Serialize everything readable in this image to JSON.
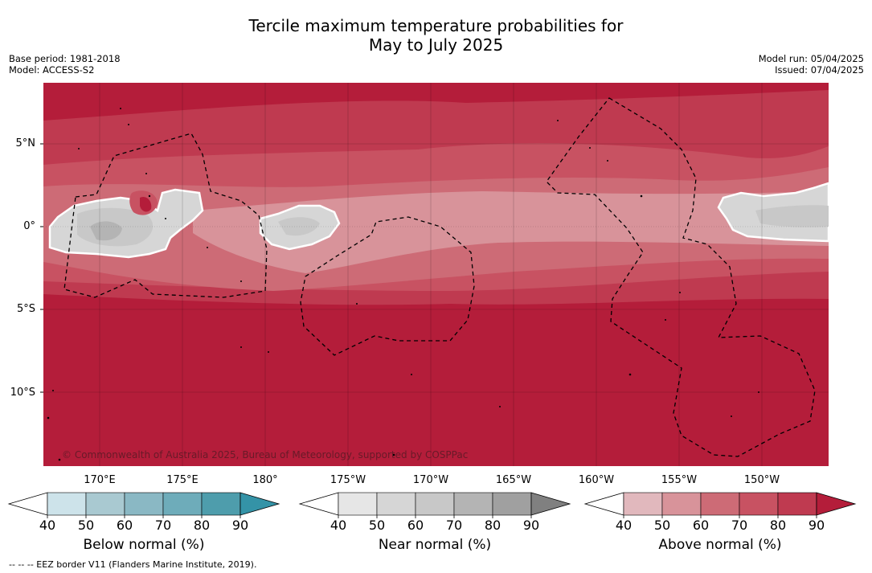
{
  "header": {
    "title_line1": "Tercile maximum temperature probabilities for",
    "title_line2": "May to July 2025",
    "base_period": "Base period: 1981-2018",
    "model": "Model: ACCESS-S2",
    "model_run": "Model run: 05/04/2025",
    "issued": "Issued: 07/04/2025"
  },
  "map": {
    "lat_labels": [
      "5°N",
      "0°",
      "5°S",
      "10°S"
    ],
    "lon_labels": [
      "170°E",
      "175°E",
      "180°",
      "175°W",
      "170°W",
      "165°W",
      "160°W",
      "155°W",
      "150°W"
    ],
    "copyright": "© Commonwealth of Australia 2025, Bureau of Meteorology, supported by COSPPac",
    "colors": {
      "above_90": "#b41d3a",
      "above_80": "#bf3a50",
      "above_70": "#c85262",
      "above_60": "#cd6b76",
      "above_50": "#d8939a",
      "near_50": "#d6d6d6",
      "near_60": "#c8c8c8",
      "near_70": "#b4b4b4",
      "eez_line": "#000000"
    }
  },
  "colorbars": [
    {
      "name": "below",
      "title": "Below normal (%)",
      "ticks": [
        "40",
        "50",
        "60",
        "70",
        "80",
        "90"
      ],
      "colors": [
        "#cde3ea",
        "#a9c9d1",
        "#8ab8c4",
        "#6eacba",
        "#4e9dac",
        "#3493a7"
      ]
    },
    {
      "name": "near",
      "title": "Near normal (%)",
      "ticks": [
        "40",
        "50",
        "60",
        "70",
        "80",
        "90"
      ],
      "colors": [
        "#e6e6e6",
        "#d6d6d6",
        "#c8c8c8",
        "#b4b4b4",
        "#a0a0a0",
        "#808080"
      ]
    },
    {
      "name": "above",
      "title": "Above normal (%)",
      "ticks": [
        "40",
        "50",
        "60",
        "70",
        "80",
        "90"
      ],
      "colors": [
        "#e1b8bd",
        "#d8939a",
        "#cd6b76",
        "#c85262",
        "#bf3a50",
        "#b41d3a"
      ]
    }
  ],
  "footnote": "-- -- -- EEZ border V11 (Flanders Marine Institute, 2019)."
}
